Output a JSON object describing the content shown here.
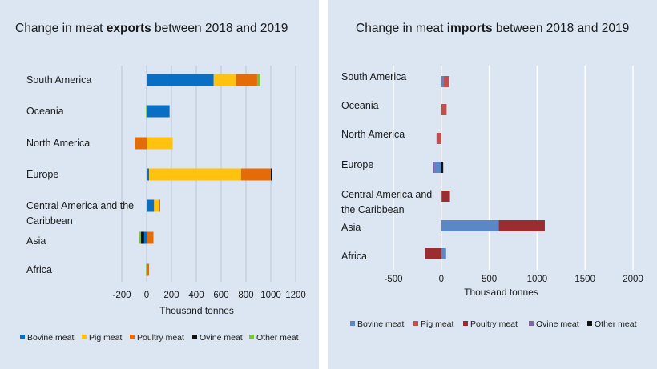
{
  "chart_data": [
    {
      "type": "bar",
      "orientation": "horizontal",
      "stacked": true,
      "title_prefix": "Change in meat ",
      "title_bold": "exports",
      "title_suffix": " between 2018 and 2019",
      "title": "Change in meat exports between 2018 and 2019",
      "xlabel": "Thousand tonnes",
      "ylabel": "",
      "xlim": [
        -200,
        1200
      ],
      "ticks": [
        "-200",
        "0",
        "200",
        "400",
        "600",
        "800",
        "1000",
        "1200"
      ],
      "tick_values": [
        -200,
        0,
        200,
        400,
        600,
        800,
        1000,
        1200
      ],
      "grid": true,
      "categories": [
        "South America",
        "Oceania",
        "North America",
        "Europe",
        "Central America and the Caribbean",
        "Asia",
        "Africa"
      ],
      "category_lines": [
        [
          "South America"
        ],
        [
          "Oceania"
        ],
        [
          "North America"
        ],
        [
          "Europe"
        ],
        [
          "Central America and the",
          "Caribbean"
        ],
        [
          "Asia"
        ],
        [
          "Africa"
        ]
      ],
      "series": [
        {
          "name": "Bovine meat",
          "color": "#0a6fc2",
          "values": [
            540,
            185,
            0,
            20,
            60,
            -20,
            0
          ]
        },
        {
          "name": "Pig meat",
          "color": "#ffc20e",
          "values": [
            180,
            0,
            210,
            740,
            40,
            0,
            5
          ]
        },
        {
          "name": "Poultry meat",
          "color": "#e36c09",
          "values": [
            170,
            0,
            -95,
            240,
            5,
            55,
            15
          ]
        },
        {
          "name": "Ovine meat",
          "color": "#111111",
          "values": [
            0,
            0,
            0,
            10,
            0,
            -25,
            0
          ]
        },
        {
          "name": "Other meat",
          "color": "#7ac143",
          "values": [
            25,
            -5,
            0,
            0,
            0,
            -15,
            -5
          ]
        }
      ]
    },
    {
      "type": "bar",
      "orientation": "horizontal",
      "stacked": true,
      "title_prefix": "Change in meat ",
      "title_bold": "imports",
      "title_suffix": " between 2018 and 2019",
      "title": "Change in meat imports between 2018 and 2019",
      "xlabel": "Thousand tonnes",
      "ylabel": "",
      "xlim": [
        -500,
        2000
      ],
      "ticks": [
        "-500",
        "0",
        "500",
        "1000",
        "1500",
        "2000"
      ],
      "tick_values": [
        -500,
        0,
        500,
        1000,
        1500,
        2000
      ],
      "grid": true,
      "categories": [
        "South America",
        "Oceania",
        "North America",
        "Europe",
        "Central America and the Caribbean",
        "Asia",
        "Africa"
      ],
      "category_lines": [
        [
          "South America"
        ],
        [
          "Oceania"
        ],
        [
          "North America"
        ],
        [
          "Europe"
        ],
        [
          "Central America and",
          "the Caribbean"
        ],
        [
          "Asia"
        ],
        [
          "Africa"
        ]
      ],
      "series": [
        {
          "name": "Bovine meat",
          "color": "#5b87c7",
          "values": [
            20,
            0,
            0,
            -70,
            0,
            600,
            50
          ]
        },
        {
          "name": "Pig meat",
          "color": "#c0504d",
          "values": [
            60,
            55,
            -50,
            0,
            10,
            0,
            0
          ]
        },
        {
          "name": "Poultry meat",
          "color": "#9b2d30",
          "values": [
            0,
            0,
            0,
            0,
            80,
            480,
            -170
          ]
        },
        {
          "name": "Ovine meat",
          "color": "#8064a2",
          "values": [
            0,
            0,
            0,
            -20,
            0,
            0,
            0
          ]
        },
        {
          "name": "Other meat",
          "color": "#111111",
          "values": [
            0,
            0,
            0,
            20,
            0,
            0,
            0
          ]
        }
      ],
      "pig_meat_asia_note": 0
    }
  ]
}
